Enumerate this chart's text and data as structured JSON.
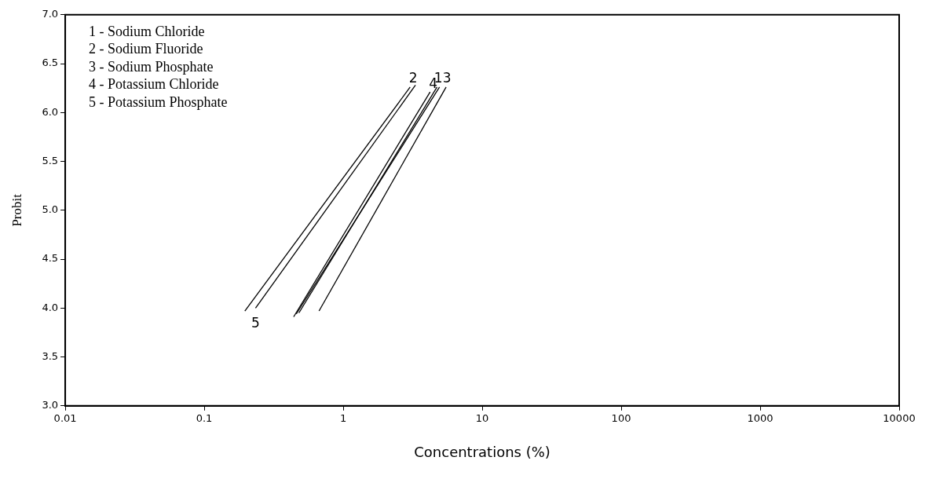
{
  "chart_data": {
    "type": "line",
    "xlabel": "Concentrations (%)",
    "ylabel": "Probit",
    "log": "x",
    "grid": false,
    "legend": false,
    "marker": "none",
    "line_style": "solid",
    "xlim": [
      0.01,
      10000
    ],
    "xticks": [
      0.01,
      0.1,
      1,
      10,
      100,
      1000,
      10000
    ],
    "ylim": [
      3,
      7
    ],
    "yticks": [
      {
        "value": 3,
        "label": "3.0"
      },
      {
        "value": 3.5,
        "label": "3.5"
      },
      {
        "value": 4,
        "label": "4.0"
      },
      {
        "value": 4.5,
        "label": "4.5"
      },
      {
        "value": 5,
        "label": "5.0"
      },
      {
        "value": 5.5,
        "label": "5.5"
      },
      {
        "value": 6,
        "label": "6.0"
      },
      {
        "value": 6.5,
        "label": "6.5"
      },
      {
        "value": 7,
        "label": "7.0"
      }
    ],
    "series": [
      {
        "color": "#000000",
        "x": [
          0.196,
          3.03
        ],
        "values": [
          3.97,
          6.26
        ]
      },
      {
        "color": "#000000",
        "x": [
          0.234,
          3.31
        ],
        "values": [
          4.0,
          6.28
        ]
      },
      {
        "color": "#000000",
        "x": [
          0.44,
          4.22
        ],
        "values": [
          3.91,
          6.21
        ]
      },
      {
        "color": "#000000",
        "x": [
          0.46,
          4.93
        ],
        "values": [
          3.94,
          6.26
        ]
      },
      {
        "color": "#000000",
        "x": [
          0.48,
          4.73
        ],
        "values": [
          3.95,
          6.26
        ]
      },
      {
        "color": "#000000",
        "x": [
          0.67,
          5.5
        ],
        "values": [
          3.97,
          6.26
        ]
      }
    ],
    "annotations": [
      "1 - Sodium Chloride",
      "2 - Sodium Fluoride",
      "3 - Sodium Phosphate",
      "4 - Potassium Chloride",
      "5 - Potassium Phosphate",
      {
        "text": "2",
        "x": 3.03,
        "y": 6.26
      },
      {
        "text": "4",
        "x": 4.22,
        "y": 6.21
      },
      {
        "text": "13",
        "x": 4.93,
        "y": 6.26
      },
      {
        "text": "5",
        "x": 0.234,
        "y": 4.0
      }
    ]
  }
}
